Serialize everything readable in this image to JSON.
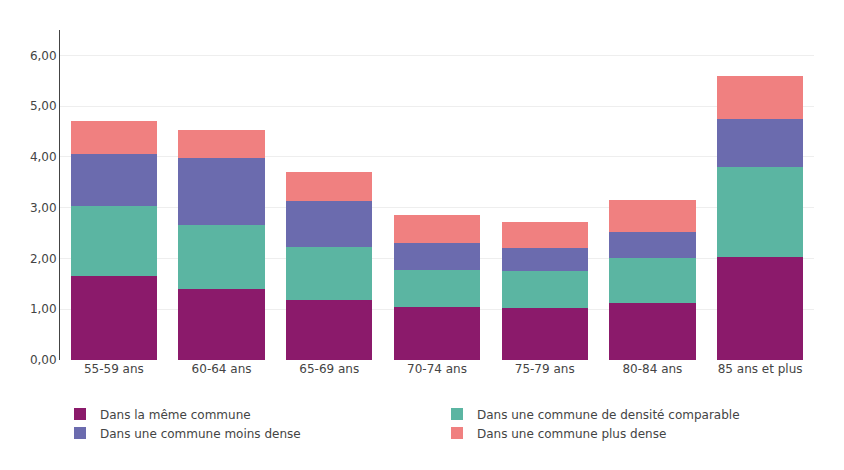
{
  "chart_data": {
    "type": "bar",
    "stacked": true,
    "categories": [
      "55-59 ans",
      "60-64 ans",
      "65-69 ans",
      "70-74 ans",
      "75-79 ans",
      "80-84 ans",
      "85 ans et plus"
    ],
    "series": [
      {
        "name": "Dans la même commune",
        "color": "#8B1A6B",
        "values": [
          1.65,
          1.4,
          1.18,
          1.05,
          1.02,
          1.13,
          2.03
        ]
      },
      {
        "name": "Dans une commune de densité comparable",
        "color": "#5BB5A2",
        "values": [
          1.38,
          1.25,
          1.05,
          0.72,
          0.73,
          0.88,
          1.77
        ]
      },
      {
        "name": "Dans une commune moins dense",
        "color": "#6B6BAE",
        "values": [
          1.02,
          1.32,
          0.9,
          0.53,
          0.46,
          0.52,
          0.95
        ]
      },
      {
        "name": "Dans une commune plus dense",
        "color": "#F08080",
        "values": [
          0.65,
          0.57,
          0.57,
          0.55,
          0.5,
          0.63,
          0.85
        ]
      }
    ],
    "ylim": [
      0,
      6.5
    ],
    "yticks": [
      {
        "value": 0,
        "label": "0,00"
      },
      {
        "value": 1,
        "label": "1,00"
      },
      {
        "value": 2,
        "label": "2,00"
      },
      {
        "value": 3,
        "label": "3,00"
      },
      {
        "value": 4,
        "label": "4,00"
      },
      {
        "value": 5,
        "label": "5,00"
      },
      {
        "value": 6,
        "label": "6,00"
      }
    ],
    "grid": true,
    "legend": "bottom"
  }
}
